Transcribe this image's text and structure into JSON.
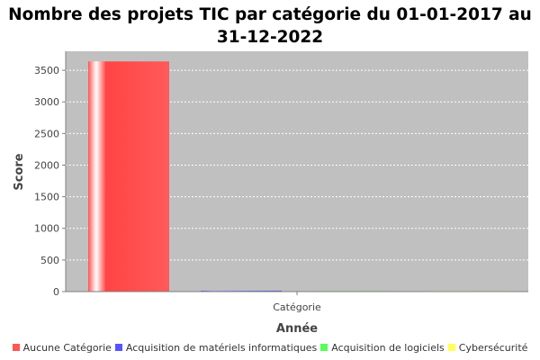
{
  "chart_data": {
    "type": "bar",
    "title_lines": [
      "Nombre des projets TIC par catégorie du 01-01-2017 au",
      "31-12-2022"
    ],
    "xlabel": "Année",
    "ylabel": "Score",
    "categories": [
      "Catégorie"
    ],
    "series": [
      {
        "name": "Aucune Catégorie",
        "values": [
          3640
        ],
        "color": "#ff5555"
      },
      {
        "name": "Acquisition de matériels informatiques",
        "values": [
          15
        ],
        "color": "#5555ff"
      },
      {
        "name": "Acquisition de logiciels",
        "values": [
          2
        ],
        "color": "#55ff55"
      },
      {
        "name": "Cybersécurité",
        "values": [
          2
        ],
        "color": "#ffff55"
      }
    ],
    "yticks": [
      0,
      500,
      1000,
      1500,
      2000,
      2500,
      3000,
      3500
    ],
    "ylim": [
      0,
      3800
    ],
    "grid": true,
    "legend_position": "bottom",
    "plot_background": "#c0c0c0"
  }
}
